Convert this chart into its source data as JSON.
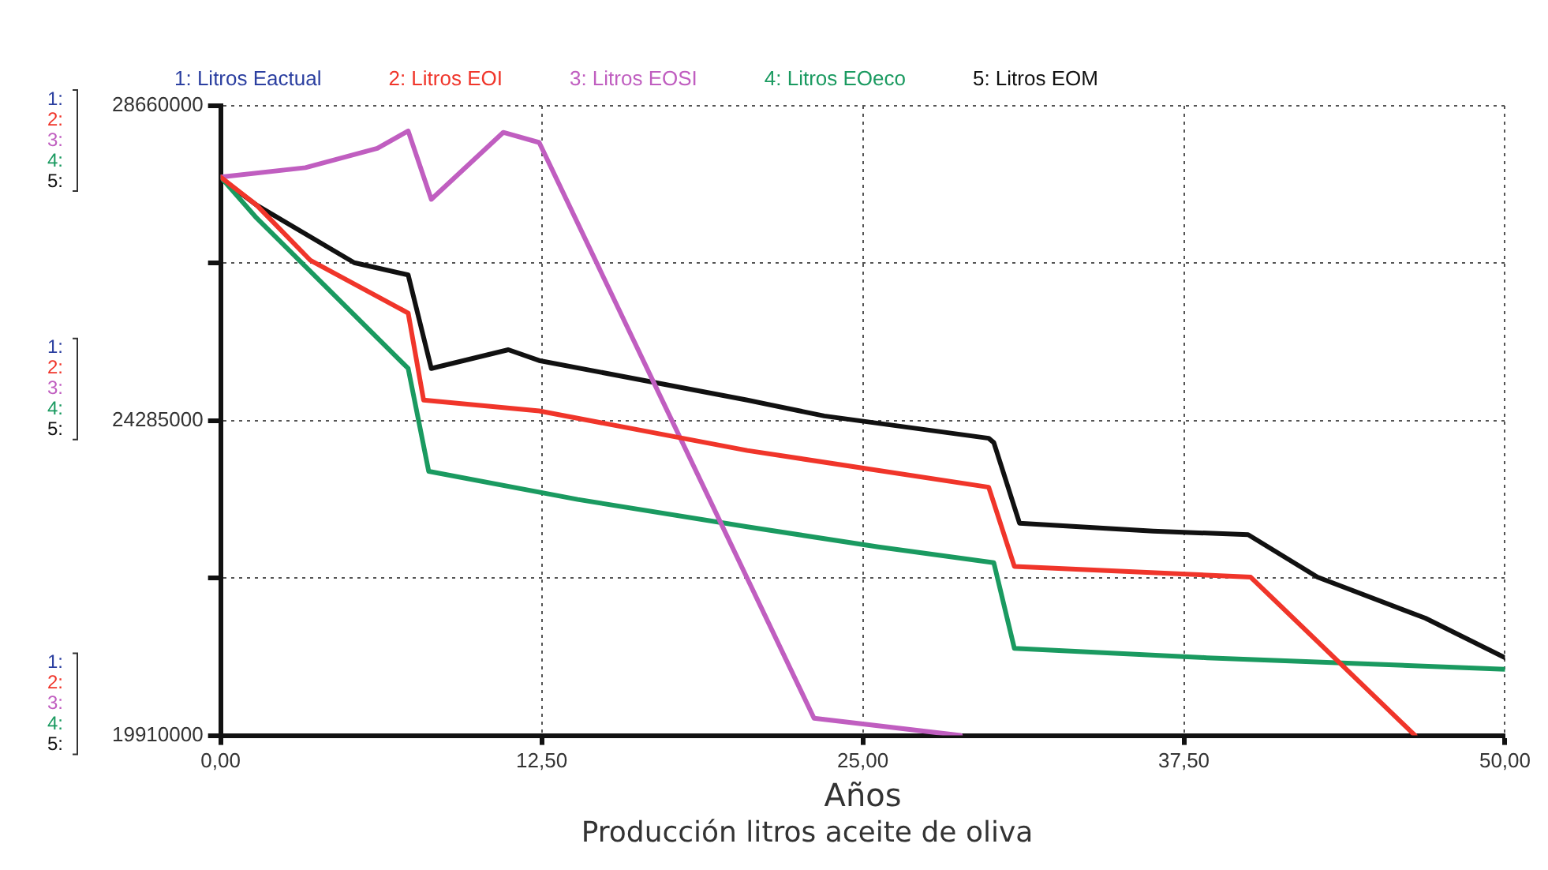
{
  "chart_data": {
    "type": "line",
    "title": "Producción litros aceite de oliva",
    "xlabel": "Años",
    "xlim": [
      0,
      50
    ],
    "xticks": [
      {
        "value": 0,
        "label": "0,00"
      },
      {
        "value": 12.5,
        "label": "12,50"
      },
      {
        "value": 25,
        "label": "25,00"
      },
      {
        "value": 37.5,
        "label": "37,50"
      },
      {
        "value": 50,
        "label": "50,00"
      }
    ],
    "ylim": [
      19910000,
      28660000
    ],
    "yticks": [
      19910000,
      {
        "value": 22097500,
        "label": null
      },
      24285000,
      {
        "value": 26472500,
        "label": null
      },
      28660000
    ],
    "grid": true,
    "legend": "top",
    "marker": "none",
    "line_style": "solid",
    "annotations": [
      "1:\n2:\n3:\n4:\n5:",
      "1:\n2:\n3:\n4:\n5:",
      "1:\n2:\n3:\n4:\n5:"
    ],
    "series": [
      {
        "name": "1: Litros Eactual",
        "color": "#2b3fa0"
      },
      {
        "name": "2: Litros EOI",
        "color": "#f0352a",
        "x": [
          0,
          1.4,
          3.5,
          7.3,
          7.9,
          12.4,
          20.5,
          29.9,
          30.9,
          40.1,
          46.5
        ],
        "values": [
          27670000,
          27280000,
          26510000,
          25780000,
          24570000,
          24420000,
          23870000,
          23360000,
          22260000,
          22110000,
          19910000
        ]
      },
      {
        "name": "3: Litros EOSI",
        "color": "#c05ec0",
        "x": [
          0,
          3.3,
          6.1,
          7.3,
          8.2,
          11,
          12.4,
          23.1,
          28.8
        ],
        "values": [
          27670000,
          27800000,
          28070000,
          28310000,
          27360000,
          28290000,
          28150000,
          20150000,
          19910000
        ]
      },
      {
        "name": "4: Litros EOeco",
        "color": "#1a9a60",
        "x": [
          0,
          1.4,
          7.3,
          8.1,
          13.9,
          20.5,
          25.6,
          30.1,
          30.9,
          38.4,
          50
        ],
        "values": [
          27670000,
          27100000,
          25010000,
          23580000,
          23190000,
          22810000,
          22530000,
          22310000,
          21120000,
          20990000,
          20830000
        ]
      },
      {
        "name": "5: Litros EOM",
        "color": "#111111",
        "x": [
          0,
          1.4,
          5.2,
          7.3,
          8.2,
          11.2,
          12.4,
          20.5,
          23.5,
          29.9,
          30.1,
          31.1,
          36.3,
          40,
          42.7,
          46.9,
          50
        ],
        "values": [
          27650000,
          27280000,
          26480000,
          26310000,
          25010000,
          25270000,
          25120000,
          24570000,
          24350000,
          24040000,
          23980000,
          22860000,
          22750000,
          22700000,
          22110000,
          21540000,
          20990000
        ]
      }
    ]
  }
}
